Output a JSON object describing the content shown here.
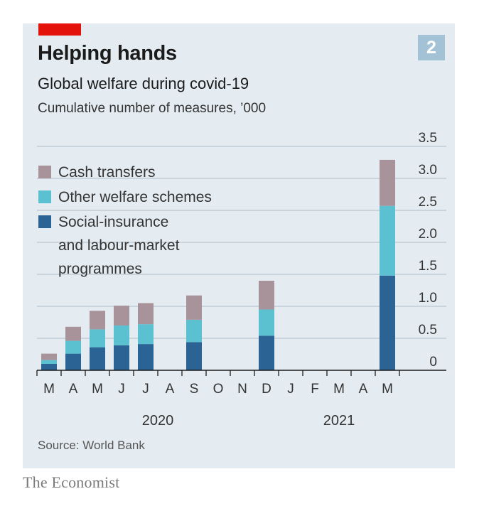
{
  "badge": "2",
  "title": "Helping hands",
  "subtitle": "Global welfare during covid-19",
  "unit_note": "Cumulative number of measures, ’000",
  "source": "Source: World Bank",
  "publisher": "The Economist",
  "colors": {
    "background": "#e4ecf2",
    "accent_red": "#e3120b",
    "cash_transfers": "#a8939a",
    "other_welfare": "#5bc0d0",
    "social_insurance": "#2b6394",
    "gridline": "#c1ccd6"
  },
  "chart_data": {
    "type": "bar",
    "stacked": true,
    "title": "Global welfare during covid-19",
    "ylabel": "Cumulative number of measures, ’000",
    "ylim": [
      0,
      3.5
    ],
    "yticks": [
      "3.5",
      "3.0",
      "2.5",
      "2.0",
      "1.5",
      "1.0",
      "0.5",
      "0"
    ],
    "ytick_values": [
      3.5,
      3.0,
      2.5,
      2.0,
      1.5,
      1.0,
      0.5,
      0
    ],
    "y_axis_side": "right",
    "categories": [
      "M",
      "A",
      "M",
      "J",
      "J",
      "A",
      "S",
      "O",
      "N",
      "D",
      "J",
      "F",
      "M",
      "A",
      "M"
    ],
    "year_labels": [
      {
        "label": "2020",
        "span": [
          0,
          9
        ]
      },
      {
        "label": "2021",
        "span": [
          10,
          14
        ]
      }
    ],
    "legend_position": "top-left",
    "series": [
      {
        "name": "Social-insurance and labour-market programmes",
        "legend_lines": [
          "Social-insurance",
          "and labour-market",
          "programmes"
        ],
        "color": "#2b6394",
        "values": [
          0.1,
          0.26,
          0.36,
          0.39,
          0.41,
          null,
          0.44,
          null,
          null,
          0.54,
          null,
          null,
          null,
          null,
          1.48
        ]
      },
      {
        "name": "Other welfare schemes",
        "legend_lines": [
          "Other welfare schemes"
        ],
        "color": "#5bc0d0",
        "values": [
          0.06,
          0.2,
          0.28,
          0.31,
          0.31,
          null,
          0.35,
          null,
          null,
          0.41,
          null,
          null,
          null,
          null,
          1.09
        ]
      },
      {
        "name": "Cash transfers",
        "legend_lines": [
          "Cash transfers"
        ],
        "color": "#a8939a",
        "values": [
          0.1,
          0.22,
          0.29,
          0.31,
          0.33,
          null,
          0.38,
          null,
          null,
          0.45,
          null,
          null,
          null,
          null,
          0.72
        ]
      }
    ]
  }
}
